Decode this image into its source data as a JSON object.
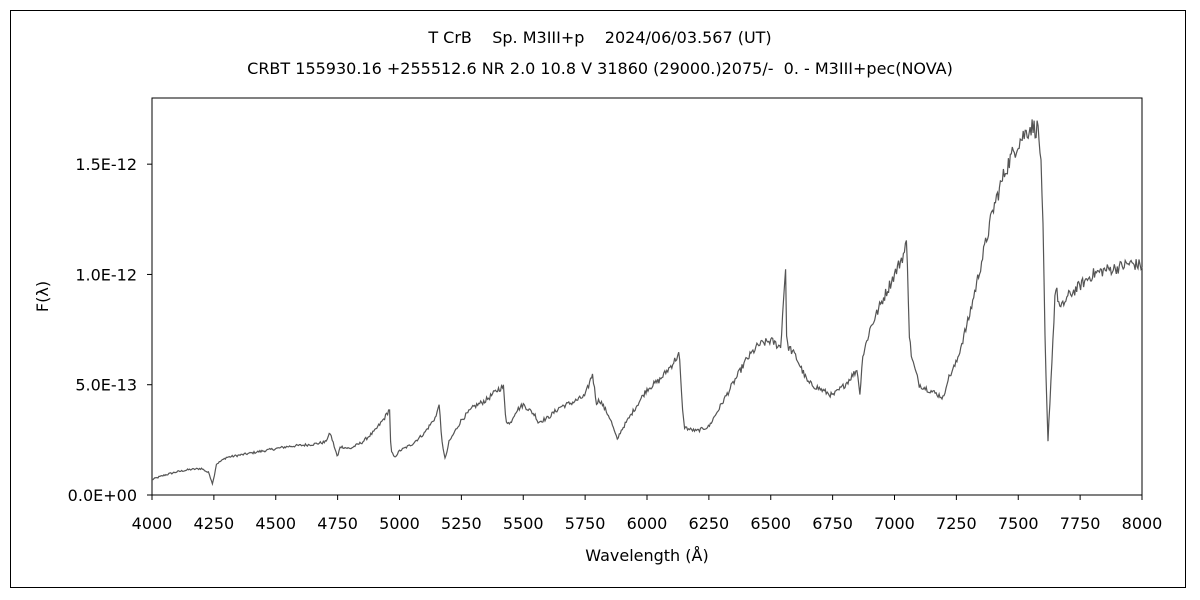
{
  "chart_data": {
    "type": "line",
    "title": "T CrB    Sp. M3III+p    2024/06/03.567 (UT)",
    "subtitle": "CRBT 155930.16 +255512.6 NR 2.0 10.8 V 31860 (29000.)2075/-  0. - M3III+pec(NOVA)",
    "xlabel": "Wavelength (Å)",
    "ylabel": "F(λ)",
    "xlim": [
      4000,
      8000
    ],
    "ylim": [
      0,
      1.8e-12
    ],
    "x_ticks": [
      4000,
      4250,
      4500,
      4750,
      5000,
      5250,
      5500,
      5750,
      6000,
      6250,
      6500,
      6750,
      7000,
      7250,
      7500,
      7750,
      8000
    ],
    "x_tick_labels": [
      "4000",
      "4250",
      "4500",
      "4750",
      "5000",
      "5250",
      "5500",
      "5750",
      "6000",
      "6250",
      "6500",
      "6750",
      "7000",
      "7250",
      "7500",
      "7750",
      "8000"
    ],
    "y_ticks": [
      0,
      5e-13,
      1e-12,
      1.5e-12
    ],
    "y_tick_labels": [
      "0.0E+00",
      "5.0E-13",
      "1.0E-12",
      "1.5E-12"
    ],
    "grid": false,
    "legend": "none",
    "line_color": "#555555",
    "series": [
      {
        "x": [
          4000,
          4050,
          4100,
          4150,
          4200,
          4230,
          4245,
          4260,
          4300,
          4350,
          4400,
          4450,
          4500,
          4550,
          4600,
          4650,
          4700,
          4720,
          4750,
          4760,
          4800,
          4850,
          4900,
          4940,
          4960,
          4965,
          4980,
          5000,
          5050,
          5100,
          5150,
          5160,
          5170,
          5185,
          5200,
          5250,
          5300,
          5350,
          5400,
          5420,
          5430,
          5445,
          5470,
          5500,
          5550,
          5560,
          5600,
          5650,
          5700,
          5750,
          5780,
          5795,
          5810,
          5850,
          5880,
          5890,
          5900,
          5950,
          6000,
          6050,
          6100,
          6130,
          6140,
          6150,
          6165,
          6200,
          6250,
          6300,
          6350,
          6400,
          6450,
          6500,
          6540,
          6560,
          6562,
          6565,
          6580,
          6600,
          6650,
          6700,
          6750,
          6800,
          6850,
          6860,
          6870,
          6900,
          6950,
          7000,
          7040,
          7050,
          7060,
          7070,
          7100,
          7150,
          7200,
          7210,
          7250,
          7300,
          7350,
          7400,
          7450,
          7500,
          7550,
          7580,
          7590,
          7600,
          7610,
          7620,
          7640,
          7650,
          7670,
          7700,
          7750,
          7800,
          7850,
          7900,
          7950,
          8000
        ],
        "y": [
          7e-14,
          9e-14,
          1.05e-13,
          1.15e-13,
          1.2e-13,
          1e-13,
          5e-14,
          1.4e-13,
          1.7e-13,
          1.8e-13,
          1.9e-13,
          2e-13,
          2.1e-13,
          2.2e-13,
          2.25e-13,
          2.3e-13,
          2.4e-13,
          2.8e-13,
          1.7e-13,
          2.2e-13,
          2.1e-13,
          2.4e-13,
          2.9e-13,
          3.5e-13,
          3.9e-13,
          2e-13,
          1.7e-13,
          2e-13,
          2.3e-13,
          2.8e-13,
          3.6e-13,
          4.2e-13,
          2.5e-13,
          1.6e-13,
          2.4e-13,
          3.4e-13,
          4e-13,
          4.3e-13,
          4.8e-13,
          4.9e-13,
          3.4e-13,
          3.2e-13,
          3.8e-13,
          4.1e-13,
          3.6e-13,
          3.3e-13,
          3.5e-13,
          4e-13,
          4.2e-13,
          4.5e-13,
          5.5e-13,
          4.2e-13,
          4.3e-13,
          3.5e-13,
          2.5e-13,
          2.8e-13,
          3e-13,
          3.9e-13,
          4.8e-13,
          5.2e-13,
          5.9e-13,
          6.4e-13,
          4.5e-13,
          3.1e-13,
          3e-13,
          2.9e-13,
          3.1e-13,
          4.1e-13,
          5.1e-13,
          6.1e-13,
          6.8e-13,
          7e-13,
          6.7e-13,
          1.04e-12,
          8e-13,
          6.8e-13,
          6.6e-13,
          6.3e-13,
          5.1e-13,
          4.8e-13,
          4.5e-13,
          5e-13,
          5.7e-13,
          4.5e-13,
          6.2e-13,
          7.5e-13,
          8.8e-13,
          1e-12,
          1.1e-12,
          1.15e-12,
          7.2e-13,
          6.2e-13,
          5e-13,
          4.7e-13,
          4.4e-13,
          5.1e-13,
          6e-13,
          8e-13,
          1.05e-12,
          1.3e-12,
          1.48e-12,
          1.6e-12,
          1.67e-12,
          1.66e-12,
          1.55e-12,
          1.2e-12,
          6e-13,
          2.4e-13,
          7e-13,
          9.5e-13,
          8.4e-13,
          9e-13,
          9.5e-13,
          1e-12,
          1.02e-12,
          1.03e-12,
          1.05e-12,
          1.04e-12
        ]
      }
    ]
  }
}
